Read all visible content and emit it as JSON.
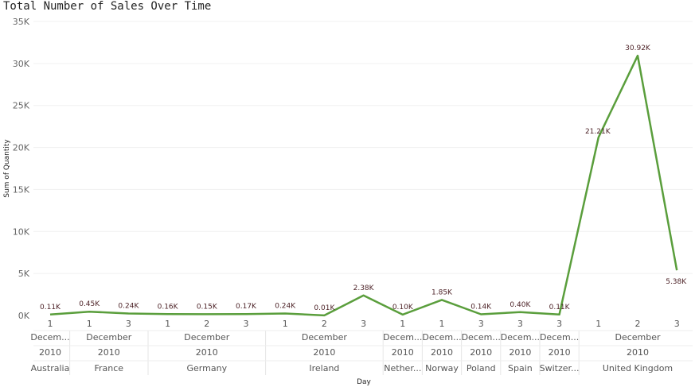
{
  "chart_data": {
    "type": "line",
    "title": "Total Number of Sales Over Time",
    "xlabel": "Day",
    "ylabel": "Sum of Quantity",
    "ylim": [
      0,
      35000
    ],
    "yticks": [
      "0K",
      "5K",
      "10K",
      "15K",
      "20K",
      "25K",
      "30K",
      "35K"
    ],
    "grid": true,
    "line_color": "#5a9e3c",
    "label_color": "#4a1f24",
    "points": [
      {
        "day": "1",
        "month": "Decem...",
        "year": "2010",
        "country": "Australia",
        "value": 110,
        "label": "0.11K"
      },
      {
        "day": "1",
        "month": "December",
        "year": "2010",
        "country": "France",
        "value": 450,
        "label": "0.45K"
      },
      {
        "day": "3",
        "month": "December",
        "year": "2010",
        "country": "France",
        "value": 240,
        "label": "0.24K"
      },
      {
        "day": "1",
        "month": "December",
        "year": "2010",
        "country": "Germany",
        "value": 160,
        "label": "0.16K"
      },
      {
        "day": "2",
        "month": "December",
        "year": "2010",
        "country": "Germany",
        "value": 150,
        "label": "0.15K"
      },
      {
        "day": "3",
        "month": "December",
        "year": "2010",
        "country": "Germany",
        "value": 170,
        "label": "0.17K"
      },
      {
        "day": "1",
        "month": "December",
        "year": "2010",
        "country": "Ireland",
        "value": 240,
        "label": "0.24K"
      },
      {
        "day": "2",
        "month": "December",
        "year": "2010",
        "country": "Ireland",
        "value": 10,
        "label": "0.01K"
      },
      {
        "day": "3",
        "month": "December",
        "year": "2010",
        "country": "Ireland",
        "value": 2380,
        "label": "2.38K"
      },
      {
        "day": "1",
        "month": "Decem...",
        "year": "2010",
        "country": "Nether...",
        "value": 100,
        "label": "0.10K"
      },
      {
        "day": "1",
        "month": "Decem...",
        "year": "2010",
        "country": "Norway",
        "value": 1850,
        "label": "1.85K"
      },
      {
        "day": "3",
        "month": "Decem...",
        "year": "2010",
        "country": "Poland",
        "value": 140,
        "label": "0.14K"
      },
      {
        "day": "3",
        "month": "Decem...",
        "year": "2010",
        "country": "Spain",
        "value": 400,
        "label": "0.40K"
      },
      {
        "day": "3",
        "month": "Decem...",
        "year": "2010",
        "country": "Switzer...",
        "value": 110,
        "label": "0.11K"
      },
      {
        "day": "1",
        "month": "December",
        "year": "2010",
        "country": "United Kingdom",
        "value": 21210,
        "label": "21.21K"
      },
      {
        "day": "2",
        "month": "December",
        "year": "2010",
        "country": "United Kingdom",
        "value": 30920,
        "label": "30.92K"
      },
      {
        "day": "3",
        "month": "December",
        "year": "2010",
        "country": "United Kingdom",
        "value": 5380,
        "label": "5.38K"
      }
    ]
  }
}
